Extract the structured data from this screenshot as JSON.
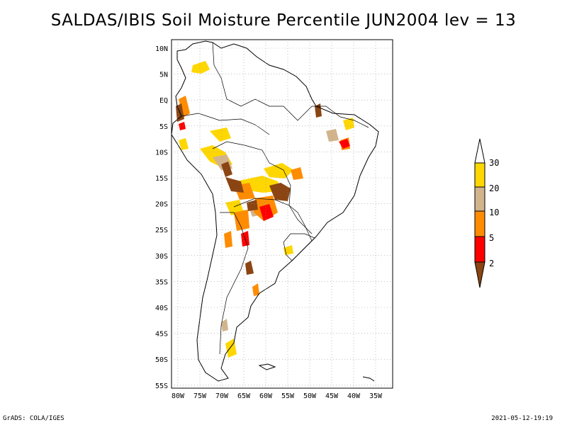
{
  "title": "SALDAS/IBIS Soil Moisture Percentile JUN2004 lev = 13",
  "lat_labels": [
    "10N",
    "5N",
    "EQ",
    "5S",
    "10S",
    "15S",
    "20S",
    "25S",
    "30S",
    "35S",
    "40S",
    "45S",
    "50S",
    "55S"
  ],
  "lon_labels": [
    "80W",
    "75W",
    "70W",
    "65W",
    "60W",
    "55W",
    "50W",
    "45W",
    "40W",
    "35W"
  ],
  "colorbar": {
    "labels": [
      "2",
      "5",
      "10",
      "20",
      "30"
    ],
    "colors": {
      "lt2": "#8b4513",
      "2_5": "#ff0000",
      "5_10": "#ff8c00",
      "10_20": "#d2b48c",
      "20_30": "#ffd700",
      "gt30": "#ffffff"
    }
  },
  "footer": {
    "left": "GrADS: COLA/IGES",
    "right": "2021-05-12-19:19"
  }
}
